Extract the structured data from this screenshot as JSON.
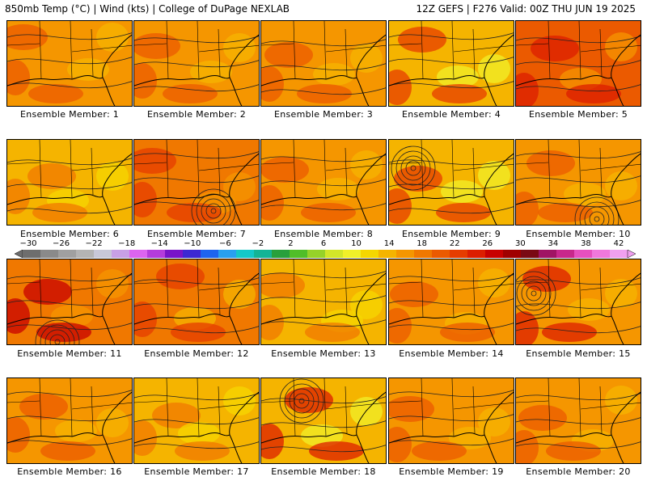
{
  "header": {
    "left": "850mb Temp (°C) | Wind (kts) | College of DuPage NEXLAB",
    "right": "12Z GEFS | F276 Valid: 00Z THU JUN 19 2025"
  },
  "colorbar": {
    "labels": [
      "−30",
      "−26",
      "−22",
      "−18",
      "−14",
      "−10",
      "−6",
      "−2",
      "2",
      "6",
      "10",
      "14",
      "18",
      "22",
      "26",
      "30",
      "34",
      "38",
      "42"
    ],
    "colors": [
      "#6e6e6e",
      "#8a8a8a",
      "#a0a0a0",
      "#b4b4b4",
      "#c8c8d8",
      "#c8a0e6",
      "#dc64f0",
      "#b43cdc",
      "#7814c8",
      "#3c28d2",
      "#1e64f0",
      "#28a0f0",
      "#14c8c8",
      "#14b496",
      "#28a03c",
      "#50be28",
      "#96d228",
      "#d2e628",
      "#f0f028",
      "#f5d700",
      "#f5b400",
      "#f59600",
      "#f07800",
      "#eb5a00",
      "#e63c00",
      "#dc1e00",
      "#c80000",
      "#a00000",
      "#7a0a14",
      "#a01464",
      "#c8288c",
      "#e650be",
      "#f078dc",
      "#f0a0f0"
    ]
  },
  "panels": [
    {
      "label": "Ensemble Member: 1",
      "tone": "#f59600",
      "warm": "#eb5a00",
      "cool": "#f5b400",
      "lows": []
    },
    {
      "label": "Ensemble Member: 2",
      "tone": "#f59600",
      "warm": "#eb5a00",
      "cool": "#f5b400",
      "lows": []
    },
    {
      "label": "Ensemble Member: 3",
      "tone": "#f59600",
      "warm": "#eb5a00",
      "cool": "#f5b400",
      "lows": []
    },
    {
      "label": "Ensemble Member: 4",
      "tone": "#f5b400",
      "warm": "#e63c00",
      "cool": "#f0f028",
      "lows": []
    },
    {
      "label": "Ensemble Member: 5",
      "tone": "#eb5a00",
      "warm": "#dc1e00",
      "cool": "#f59600",
      "lows": []
    },
    {
      "label": "Ensemble Member: 6",
      "tone": "#f5b400",
      "warm": "#f07800",
      "cool": "#f5d700",
      "lows": []
    },
    {
      "label": "Ensemble Member: 7",
      "tone": "#f07800",
      "warm": "#e63c00",
      "cool": "#f59600",
      "lows": [
        [
          98,
          88
        ]
      ]
    },
    {
      "label": "Ensemble Member: 8",
      "tone": "#f59600",
      "warm": "#eb5a00",
      "cool": "#f5b400",
      "lows": []
    },
    {
      "label": "Ensemble Member: 9",
      "tone": "#f5b400",
      "warm": "#e63c00",
      "cool": "#f0f028",
      "lows": [
        [
          30,
          35
        ]
      ]
    },
    {
      "label": "Ensemble Member: 10",
      "tone": "#f59600",
      "warm": "#eb5a00",
      "cool": "#f5b400",
      "lows": [
        [
          100,
          98
        ]
      ]
    },
    {
      "label": "Ensemble Member: 11",
      "tone": "#f07800",
      "warm": "#c80000",
      "cool": "#f59600",
      "lows": [
        [
          62,
          102
        ]
      ]
    },
    {
      "label": "Ensemble Member: 12",
      "tone": "#f07800",
      "warm": "#e63c00",
      "cool": "#f5b400",
      "lows": []
    },
    {
      "label": "Ensemble Member: 13",
      "tone": "#f5b400",
      "warm": "#f07800",
      "cool": "#f5d700",
      "lows": []
    },
    {
      "label": "Ensemble Member: 14",
      "tone": "#f59600",
      "warm": "#eb5a00",
      "cool": "#f5b400",
      "lows": []
    },
    {
      "label": "Ensemble Member: 15",
      "tone": "#f59600",
      "warm": "#dc1e00",
      "cool": "#f5b400",
      "lows": [
        [
          22,
          42
        ]
      ]
    },
    {
      "label": "Ensemble Member: 16",
      "tone": "#f59600",
      "warm": "#eb5a00",
      "cool": "#f5b400",
      "lows": []
    },
    {
      "label": "Ensemble Member: 17",
      "tone": "#f5b400",
      "warm": "#f07800",
      "cool": "#f5d700",
      "lows": []
    },
    {
      "label": "Ensemble Member: 18",
      "tone": "#f5b400",
      "warm": "#dc1e00",
      "cool": "#f0f028",
      "lows": [
        [
          50,
          28
        ]
      ]
    },
    {
      "label": "Ensemble Member: 19",
      "tone": "#f59600",
      "warm": "#eb5a00",
      "cool": "#f5b400",
      "lows": []
    },
    {
      "label": "Ensemble Member: 20",
      "tone": "#f59600",
      "warm": "#eb5a00",
      "cool": "#f5b400",
      "lows": []
    }
  ]
}
